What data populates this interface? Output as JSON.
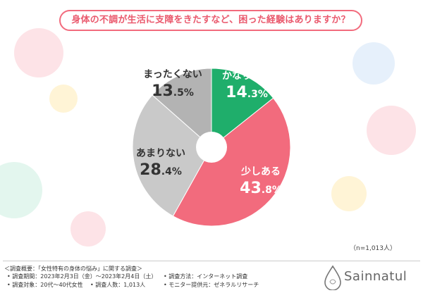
{
  "title": "身体の不調が生活に支障をきたすなど、困った経験はありますか？",
  "chart_data": {
    "type": "pie",
    "donut": true,
    "slices": [
      {
        "label": "かなりある",
        "value": 14.3,
        "display_int": "14",
        "display_dec": ".3",
        "display_pct": "%",
        "color": "#1fae6b"
      },
      {
        "label": "少しある",
        "value": 43.8,
        "display_int": "43",
        "display_dec": ".8",
        "display_pct": "%",
        "color": "#f26b7d"
      },
      {
        "label": "あまりない",
        "value": 28.4,
        "display_int": "28",
        "display_dec": ".4",
        "display_pct": "%",
        "color": "#c9c9c9"
      },
      {
        "label": "まったくない",
        "value": 13.5,
        "display_int": "13",
        "display_dec": ".5",
        "display_pct": "%",
        "color": "#b3b3b3"
      }
    ]
  },
  "sample_size": "（n=1,013人）",
  "survey": {
    "heading": "＜調査概要：「女性特有の身体の悩み」に関する調査＞",
    "period": "• 調査期間：2023年2月3日（金）〜2023年2月4日（土）",
    "target": "• 調査対象：20代〜40代女性",
    "count": "• 調査人数：1,013人",
    "method": "• 調査方法：インターネット調査",
    "provider": "• モニター提供元：ゼネラルリサーチ"
  },
  "logo": {
    "text": "Sainnatul"
  }
}
